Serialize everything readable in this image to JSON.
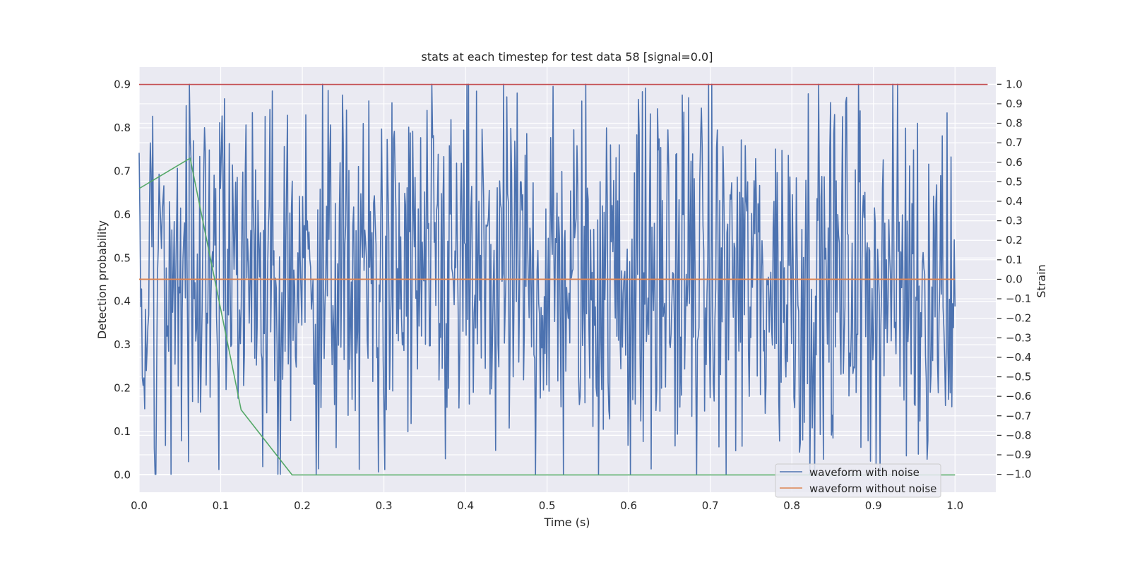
{
  "chart_data": {
    "type": "line",
    "title": "stats at each timestep for test data 58 [signal=0.0]",
    "xlabel": "Time (s)",
    "ylabel": "Detection probability",
    "y2label": "Strain",
    "xlim": [
      0.0,
      1.05
    ],
    "ylim": [
      -0.04,
      0.94
    ],
    "y2lim": [
      -1.092,
      1.088
    ],
    "xticks": [
      "0.0",
      "0.1",
      "0.2",
      "0.3",
      "0.4",
      "0.5",
      "0.6",
      "0.7",
      "0.8",
      "0.9",
      "1.0"
    ],
    "yticks": [
      "0.0",
      "0.1",
      "0.2",
      "0.3",
      "0.4",
      "0.5",
      "0.6",
      "0.7",
      "0.8",
      "0.9"
    ],
    "y2ticks": [
      "−1.0",
      "−0.9",
      "−0.8",
      "−0.7",
      "−0.6",
      "−0.5",
      "−0.4",
      "−0.3",
      "−0.2",
      "−0.1",
      "0.0",
      "0.1",
      "0.2",
      "0.3",
      "0.4",
      "0.5",
      "0.6",
      "0.7",
      "0.8",
      "0.9",
      "1.0"
    ],
    "grid": true,
    "legend_position": "lower-right",
    "series": [
      {
        "name": "waveform with noise",
        "axis": "right",
        "color": "#4c72b0",
        "x_start": 0.0,
        "x_end": 1.0,
        "n_points": 1024,
        "range": [
          -1.0,
          1.0
        ],
        "description_values": [
          0.45,
          -0.3,
          0.6,
          -0.55,
          0.8,
          -0.9,
          0.15,
          0.55,
          -0.7,
          0.85,
          -0.35,
          0.6,
          0.2,
          -0.85,
          0.7,
          -0.4,
          0.9,
          -0.6,
          0.45,
          -0.2,
          0.75,
          -0.95,
          0.3,
          0.65,
          -0.5,
          0.85,
          -0.65,
          0.4,
          -0.2,
          0.8,
          -0.45,
          0.55,
          -0.9,
          0.7,
          0.1,
          -0.55,
          0.85,
          -0.3,
          0.6,
          -0.75
        ]
      },
      {
        "name": "waveform without noise",
        "axis": "right",
        "color": "#dd8452",
        "x": [
          0.0,
          1.0
        ],
        "y": [
          0.0,
          0.0
        ]
      },
      {
        "axis": "left",
        "color": "#55a868",
        "x": [
          0.0,
          0.0625,
          0.125,
          0.1875,
          1.0
        ],
        "y": [
          0.66,
          0.73,
          0.15,
          0.0,
          0.0
        ]
      },
      {
        "axis": "left",
        "color": "#c44e52",
        "x": [
          0.0,
          1.04
        ],
        "y": [
          0.9,
          0.9
        ]
      }
    ]
  },
  "colors": {
    "plot_background": "#eaeaf2",
    "grid": "#ffffff",
    "text": "#262626"
  }
}
